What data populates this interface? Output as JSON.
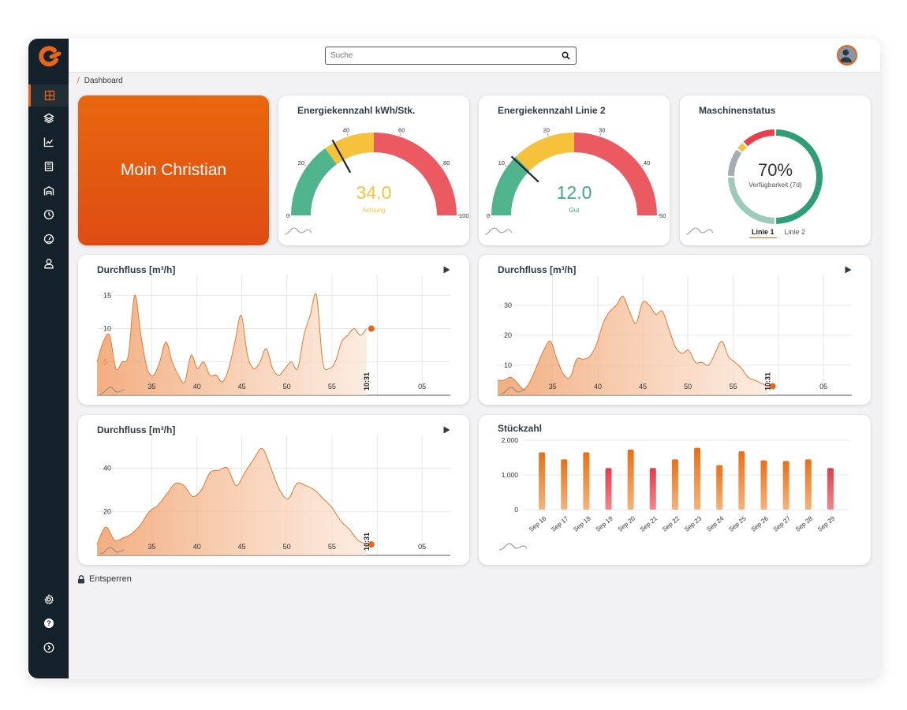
{
  "search": {
    "placeholder": "Suche"
  },
  "breadcrumb": {
    "separator": "/",
    "current": "Dashboard"
  },
  "sidebar": {
    "items": [
      {
        "icon": "dashboard-icon",
        "active": true
      },
      {
        "icon": "layers-icon"
      },
      {
        "icon": "trend-icon"
      },
      {
        "icon": "calculator-icon"
      },
      {
        "icon": "warehouse-icon"
      },
      {
        "icon": "clock-icon"
      },
      {
        "icon": "speedometer-icon"
      },
      {
        "icon": "user-icon"
      }
    ],
    "bottom": [
      {
        "icon": "settings-icon"
      },
      {
        "icon": "help-icon"
      },
      {
        "icon": "expand-icon"
      }
    ]
  },
  "hero": {
    "text": "Moin Christian",
    "colors": [
      "#e9670f",
      "#de4c12"
    ]
  },
  "colors": {
    "accent": "#e8661a",
    "green": "#3daa7f",
    "yellow": "#f6c23b",
    "red": "#ea5a60",
    "dark": "#14212a"
  },
  "gauge1": {
    "title": "Energiekennzahl kWh/Stk.",
    "value": 34.0,
    "value_text": "34.0",
    "status": "Achtung",
    "status_color": "#f6c23b",
    "min": 0,
    "max": 100,
    "ticks": [
      "0",
      "20",
      "40",
      "60",
      "80",
      "100"
    ],
    "bands": [
      {
        "from": 0,
        "to": 30,
        "color": "#4fb38b"
      },
      {
        "from": 30,
        "to": 50,
        "color": "#f6c23b"
      },
      {
        "from": 50,
        "to": 100,
        "color": "#ea5a60"
      }
    ]
  },
  "gauge2": {
    "title": "Energiekennzahl Linie 2",
    "value": 12.0,
    "value_text": "12.0",
    "status": "Gut",
    "status_color": "#3daa7f",
    "min": 0,
    "max": 50,
    "ticks": [
      "0",
      "10",
      "20",
      "30",
      "40",
      "50"
    ],
    "bands": [
      {
        "from": 0,
        "to": 12.5,
        "color": "#4fb38b"
      },
      {
        "from": 12.5,
        "to": 25,
        "color": "#f6c23b"
      },
      {
        "from": 25,
        "to": 50,
        "color": "#ea5a60"
      }
    ]
  },
  "status": {
    "title": "Maschinenstatus",
    "percent_text": "70%",
    "label": "Verfügbarkeit (7d)",
    "tabs": [
      "Linie 1",
      "Linie 2"
    ],
    "active_tab": 0,
    "segments": [
      {
        "value": 50,
        "color": "#2f9e76"
      },
      {
        "value": 25,
        "color": "#9ccbb9"
      },
      {
        "value": 10,
        "color": "#a4adb5"
      },
      {
        "value": 3,
        "color": "#f6c23b"
      },
      {
        "value": 12,
        "color": "#ea3f49"
      }
    ]
  },
  "chart_data": [
    {
      "type": "area",
      "title": "Durchfluss [m³/h]",
      "x_ticks": [
        "35",
        "40",
        "45",
        "50",
        "55",
        "05"
      ],
      "y_ticks": [
        "5",
        "10",
        "15"
      ],
      "ylim": [
        0,
        18
      ],
      "now_label": "10:31",
      "series": [
        {
          "values": [
            5,
            8,
            9,
            4,
            5,
            6,
            15,
            9,
            4,
            3,
            5,
            8,
            5,
            3,
            2,
            6,
            4,
            5,
            3,
            3,
            2,
            4,
            8,
            12,
            6,
            4,
            5,
            7,
            4,
            3,
            4,
            5,
            4,
            9,
            12,
            15,
            5,
            4,
            5,
            8,
            9,
            10,
            9,
            10
          ]
        }
      ]
    },
    {
      "type": "area",
      "title": "Durchfluss [m³/h]",
      "x_ticks": [
        "35",
        "40",
        "45",
        "50",
        "55",
        "05"
      ],
      "y_ticks": [
        "10",
        "20",
        "30"
      ],
      "ylim": [
        0,
        40
      ],
      "now_label": "10:31",
      "series": [
        {
          "values": [
            5,
            5,
            6,
            4,
            2,
            5,
            10,
            15,
            18,
            12,
            7,
            6,
            12,
            12,
            13,
            17,
            24,
            28,
            30,
            33,
            28,
            24,
            31,
            30,
            27,
            28,
            22,
            16,
            14,
            15,
            11,
            11,
            10,
            14,
            18,
            13,
            11,
            9,
            6,
            5,
            4,
            3
          ]
        }
      ]
    },
    {
      "type": "area",
      "title": "Durchfluss [m³/h]",
      "x_ticks": [
        "35",
        "40",
        "45",
        "50",
        "55",
        "05"
      ],
      "y_ticks": [
        "20",
        "40"
      ],
      "ylim": [
        0,
        55
      ],
      "now_label": "10:31",
      "series": [
        {
          "values": [
            5,
            13,
            7,
            8,
            10,
            14,
            20,
            23,
            28,
            33,
            32,
            27,
            30,
            38,
            39,
            40,
            32,
            38,
            44,
            49,
            40,
            30,
            26,
            33,
            32,
            30,
            26,
            22,
            16,
            12,
            7,
            5
          ]
        }
      ]
    },
    {
      "type": "bar",
      "title": "Stückzahl",
      "categories": [
        "Sep 16",
        "Sep 17",
        "Sep 18",
        "Sep 19",
        "Sep 20",
        "Sep 21",
        "Sep 22",
        "Sep 23",
        "Sep 24",
        "Sep 25",
        "Sep 26",
        "Sep 27",
        "Sep 28",
        "Sep 29"
      ],
      "values": [
        1650,
        1450,
        1650,
        1200,
        1730,
        1200,
        1450,
        1780,
        1280,
        1680,
        1420,
        1400,
        1450,
        1200
      ],
      "highlight": [
        false,
        false,
        false,
        true,
        false,
        true,
        false,
        false,
        false,
        false,
        false,
        false,
        false,
        true
      ],
      "y_ticks": [
        "0",
        "1,000",
        "2,000"
      ],
      "ylim": [
        0,
        2000
      ]
    }
  ],
  "footer": {
    "unlock_label": "Entsperren"
  }
}
